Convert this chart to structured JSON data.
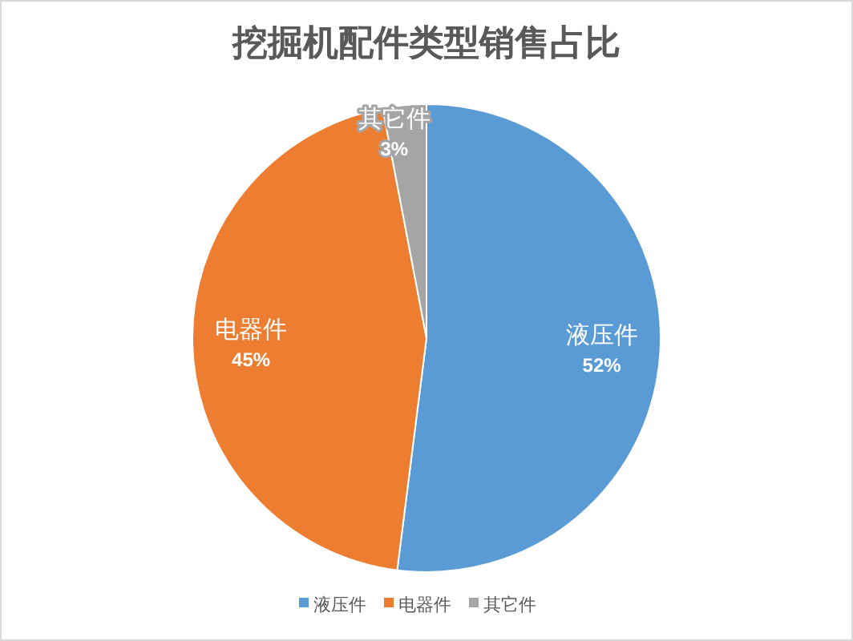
{
  "chart_data": {
    "type": "pie",
    "title": "挖掘机配件类型销售占比",
    "categories": [
      "液压件",
      "电器件",
      "其它件"
    ],
    "values": [
      52,
      45,
      3
    ],
    "colors": [
      "#5b9bd5",
      "#ed7d31",
      "#a5a5a5"
    ],
    "value_labels": [
      "52%",
      "45%",
      "3%"
    ],
    "legend": "bottom"
  }
}
